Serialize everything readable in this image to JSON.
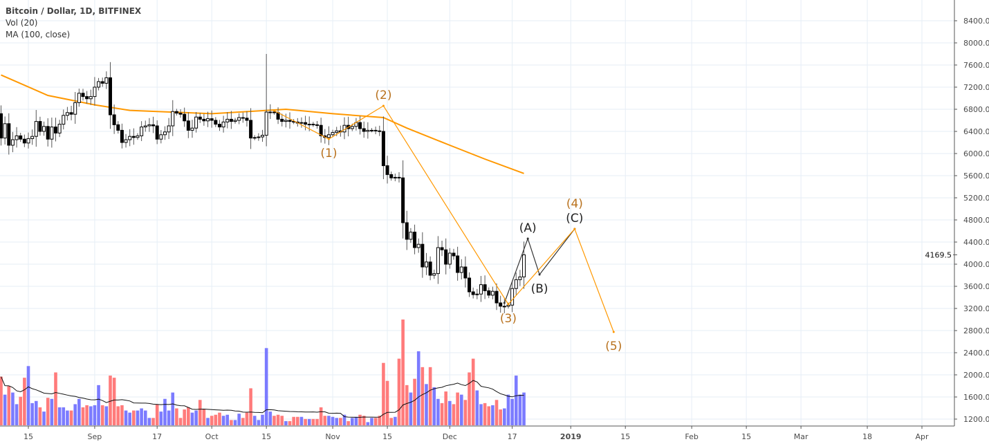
{
  "legend": {
    "symbol": "Bitcoin / Dollar, 1D, BITFINEX",
    "volume": "Vol (20)",
    "ma": "MA (100, close)"
  },
  "colors": {
    "up_candle": "#ffffff",
    "down_candle": "#000000",
    "ma_line": "#ff9800",
    "wave_line": "#ff9800",
    "wave_label": "#b8711d",
    "abc_line": "#333333",
    "volume_up": "#7b7bff",
    "volume_down": "#ff7b7b",
    "grid": "#e6eef6"
  },
  "chart_data": {
    "type": "candlestick",
    "start_date": "2018-08-08",
    "first_open": 6720,
    "close": [
      6280,
      6540,
      6150,
      6250,
      6320,
      6260,
      6190,
      6270,
      6310,
      6580,
      6400,
      6490,
      6260,
      6480,
      6370,
      6530,
      6690,
      6740,
      6710,
      6920,
      7090,
      7030,
      6990,
      7030,
      7200,
      7300,
      7270,
      7370,
      6700,
      6520,
      6420,
      6200,
      6250,
      6310,
      6290,
      6320,
      6480,
      6500,
      6520,
      6500,
      6260,
      6340,
      6390,
      6500,
      6760,
      6730,
      6710,
      6590,
      6420,
      6460,
      6660,
      6620,
      6590,
      6630,
      6600,
      6530,
      6480,
      6570,
      6620,
      6580,
      6600,
      6650,
      6640,
      6600,
      6280,
      6290,
      6300,
      6330,
      6750,
      6750,
      6740,
      6620,
      6580,
      6600,
      6580,
      6570,
      6550,
      6560,
      6530,
      6530,
      6520,
      6510,
      6320,
      6290,
      6340,
      6380,
      6410,
      6390,
      6510,
      6450,
      6490,
      6560,
      6450,
      6400,
      6420,
      6420,
      6410,
      6400,
      5780,
      5620,
      5560,
      5570,
      5560,
      4750,
      4450,
      4580,
      4300,
      4360,
      3950,
      4040,
      3800,
      3830,
      4300,
      4260,
      4000,
      4200,
      4150,
      3850,
      3950,
      3750,
      3500,
      3450,
      3460,
      3630,
      3520,
      3440,
      3510,
      3300,
      3240,
      3240,
      3260,
      3560,
      3720,
      3770,
      4169.5
    ],
    "notable_highs": {
      "2018-10-15": 7800
    },
    "volume": [
      46,
      29,
      37,
      31,
      20,
      27,
      45,
      56,
      21,
      23,
      17,
      13,
      26,
      25,
      50,
      17,
      17,
      14,
      14,
      20,
      25,
      17,
      19,
      18,
      19,
      38,
      19,
      18,
      47,
      45,
      18,
      19,
      14,
      12,
      14,
      14,
      16,
      14,
      7,
      7,
      20,
      13,
      25,
      14,
      31,
      16,
      7,
      15,
      17,
      12,
      14,
      24,
      15,
      7,
      9,
      10,
      12,
      9,
      10,
      5,
      5,
      11,
      7,
      12,
      35,
      9,
      5,
      10,
      73,
      13,
      9,
      10,
      9,
      4,
      4,
      8,
      8,
      8,
      6,
      6,
      6,
      6,
      17,
      9,
      9,
      8,
      7,
      7,
      10,
      4,
      7,
      8,
      10,
      9,
      3,
      7,
      7,
      9,
      59,
      42,
      7,
      8,
      63,
      100,
      38,
      31,
      44,
      70,
      55,
      39,
      55,
      36,
      25,
      21,
      32,
      23,
      20,
      31,
      29,
      24,
      50,
      63,
      33,
      20,
      21,
      18,
      19,
      24,
      15,
      16,
      29,
      25,
      47,
      29,
      31
    ],
    "volume_ma_period": 20,
    "ma100": [
      [
        "2018-08-08",
        7420
      ],
      [
        "2018-08-20",
        7050
      ],
      [
        "2018-09-01",
        6880
      ],
      [
        "2018-09-10",
        6780
      ],
      [
        "2018-10-01",
        6720
      ],
      [
        "2018-10-20",
        6800
      ],
      [
        "2018-11-01",
        6720
      ],
      [
        "2018-11-14",
        6650
      ],
      [
        "2018-11-20",
        6460
      ],
      [
        "2018-12-01",
        6150
      ],
      [
        "2018-12-10",
        5900
      ],
      [
        "2018-12-20",
        5640
      ]
    ],
    "elliott_wave": [
      {
        "date": "2018-10-17",
        "price": 6775,
        "label": ""
      },
      {
        "date": "2018-10-31",
        "price": 6262,
        "label": "(1)",
        "pos": "below"
      },
      {
        "date": "2018-11-14",
        "price": 6862,
        "label": "(2)",
        "pos": "above"
      },
      {
        "date": "2018-12-16",
        "price": 3275,
        "label": "(3)",
        "pos": "below"
      },
      {
        "date": "2019-01-02",
        "price": 4637,
        "label": "(4)",
        "pos": "above"
      },
      {
        "date": "2019-01-12",
        "price": 2775,
        "label": "(5)",
        "pos": "below"
      }
    ],
    "abc_correction": [
      {
        "date": "2018-12-15",
        "price": 3300,
        "label": ""
      },
      {
        "date": "2018-12-21",
        "price": 4462,
        "label": "(A)",
        "pos": "above"
      },
      {
        "date": "2018-12-24",
        "price": 3812,
        "label": "(B)",
        "pos": "below"
      },
      {
        "date": "2019-01-02",
        "price": 4637,
        "label": "(C)",
        "pos": "above"
      }
    ],
    "y_axis": {
      "ticks": [
        "8400.0",
        "8000.0",
        "7600.0",
        "7200.0",
        "6800.0",
        "6400.0",
        "6000.0",
        "5600.0",
        "5200.0",
        "4800.0",
        "4400.0",
        "4000.0",
        "3600.0",
        "3200.0",
        "2800.0",
        "2400.0",
        "2000.0",
        "1600.0",
        "1200.0"
      ],
      "range": [
        1200,
        8400
      ]
    },
    "last_price": "4169.5",
    "x_axis": {
      "ticks": [
        {
          "date": "2018-08-15",
          "label": "15"
        },
        {
          "date": "2018-09-01",
          "label": "Sep"
        },
        {
          "date": "2018-09-17",
          "label": "17"
        },
        {
          "date": "2018-10-01",
          "label": "Oct"
        },
        {
          "date": "2018-10-15",
          "label": "15"
        },
        {
          "date": "2018-11-01",
          "label": "Nov"
        },
        {
          "date": "2018-11-15",
          "label": "15"
        },
        {
          "date": "2018-12-01",
          "label": "Dec"
        },
        {
          "date": "2018-12-17",
          "label": "17"
        },
        {
          "date": "2019-01-01",
          "label": "2019",
          "bold": true
        },
        {
          "date": "2019-01-15",
          "label": "15"
        },
        {
          "date": "2019-02-01",
          "label": "Feb"
        },
        {
          "date": "2019-02-15",
          "label": "15"
        },
        {
          "date": "2019-03-01",
          "label": "Mar"
        },
        {
          "date": "2019-03-18",
          "label": "18"
        },
        {
          "date": "2019-04-01",
          "label": "Apr"
        }
      ]
    }
  }
}
